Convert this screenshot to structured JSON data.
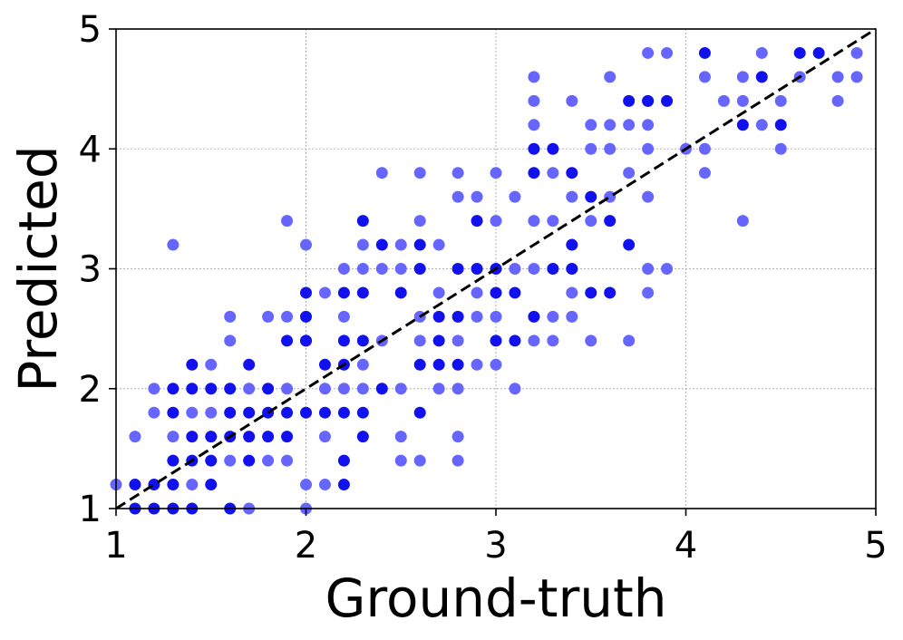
{
  "chart_data": {
    "type": "scatter",
    "title": "",
    "xlabel": "Ground-truth",
    "ylabel": "Predicted",
    "xlim": [
      1,
      5
    ],
    "ylim": [
      1,
      5
    ],
    "xticks": [
      "1",
      "2",
      "3",
      "4",
      "5"
    ],
    "yticks": [
      "1",
      "2",
      "3",
      "4",
      "5"
    ],
    "grid": true,
    "reference_line": {
      "style": "dashed",
      "color": "#000000",
      "from": [
        1,
        1
      ],
      "to": [
        5,
        5
      ]
    },
    "colors": {
      "light": "#6666ff",
      "dark": "#1111ee"
    },
    "series": [
      {
        "color_key": "light",
        "points": [
          [
            1.0,
            1.2
          ],
          [
            1.1,
            1.6
          ],
          [
            1.2,
            1.8
          ],
          [
            1.2,
            2.0
          ],
          [
            1.3,
            1.6
          ],
          [
            1.3,
            3.2
          ],
          [
            1.4,
            1.2
          ],
          [
            1.4,
            1.8
          ],
          [
            1.5,
            2.2
          ],
          [
            1.5,
            1.8
          ],
          [
            1.6,
            2.4
          ],
          [
            1.6,
            2.6
          ],
          [
            1.6,
            1.4
          ],
          [
            1.7,
            1.0
          ],
          [
            1.7,
            2.0
          ],
          [
            1.8,
            2.6
          ],
          [
            1.8,
            1.4
          ],
          [
            1.9,
            3.4
          ],
          [
            1.9,
            2.6
          ],
          [
            1.9,
            2.0
          ],
          [
            1.9,
            1.4
          ],
          [
            2.0,
            3.2
          ],
          [
            2.0,
            2.4
          ],
          [
            2.0,
            1.2
          ],
          [
            2.0,
            1.0
          ],
          [
            2.1,
            2.0
          ],
          [
            2.1,
            1.6
          ],
          [
            2.1,
            1.2
          ],
          [
            2.1,
            2.8
          ],
          [
            2.2,
            2.0
          ],
          [
            2.2,
            2.6
          ],
          [
            2.2,
            3.0
          ],
          [
            2.3,
            3.2
          ],
          [
            2.3,
            2.2
          ],
          [
            2.3,
            3.0
          ],
          [
            2.3,
            2.0
          ],
          [
            2.4,
            3.8
          ],
          [
            2.4,
            3.0
          ],
          [
            2.4,
            2.4
          ],
          [
            2.5,
            3.0
          ],
          [
            2.5,
            3.2
          ],
          [
            2.5,
            2.0
          ],
          [
            2.5,
            1.6
          ],
          [
            2.5,
            1.4
          ],
          [
            2.6,
            3.8
          ],
          [
            2.6,
            3.4
          ],
          [
            2.6,
            2.6
          ],
          [
            2.6,
            2.4
          ],
          [
            2.6,
            1.4
          ],
          [
            2.7,
            3.2
          ],
          [
            2.7,
            2.8
          ],
          [
            2.7,
            2.0
          ],
          [
            2.8,
            3.8
          ],
          [
            2.8,
            3.6
          ],
          [
            2.8,
            2.4
          ],
          [
            2.8,
            2.0
          ],
          [
            2.8,
            1.6
          ],
          [
            2.8,
            1.4
          ],
          [
            2.9,
            3.6
          ],
          [
            2.9,
            2.8
          ],
          [
            2.9,
            2.6
          ],
          [
            2.9,
            2.2
          ],
          [
            3.0,
            3.8
          ],
          [
            3.0,
            3.4
          ],
          [
            3.0,
            2.6
          ],
          [
            3.0,
            2.2
          ],
          [
            3.1,
            3.6
          ],
          [
            3.1,
            3.0
          ],
          [
            3.1,
            2.0
          ],
          [
            3.2,
            4.6
          ],
          [
            3.2,
            4.4
          ],
          [
            3.2,
            4.2
          ],
          [
            3.2,
            3.4
          ],
          [
            3.2,
            3.0
          ],
          [
            3.2,
            2.4
          ],
          [
            3.3,
            3.8
          ],
          [
            3.3,
            3.4
          ],
          [
            3.3,
            2.6
          ],
          [
            3.3,
            2.4
          ],
          [
            3.4,
            4.4
          ],
          [
            3.4,
            3.6
          ],
          [
            3.4,
            2.8
          ],
          [
            3.4,
            2.6
          ],
          [
            3.5,
            4.2
          ],
          [
            3.5,
            3.4
          ],
          [
            3.5,
            2.4
          ],
          [
            3.5,
            4.0
          ],
          [
            3.6,
            4.6
          ],
          [
            3.6,
            4.2
          ],
          [
            3.6,
            3.6
          ],
          [
            3.6,
            4.0
          ],
          [
            3.7,
            4.2
          ],
          [
            3.7,
            3.8
          ],
          [
            3.7,
            2.4
          ],
          [
            3.8,
            4.8
          ],
          [
            3.8,
            4.4
          ],
          [
            3.8,
            4.2
          ],
          [
            3.8,
            3.6
          ],
          [
            3.8,
            3.0
          ],
          [
            3.8,
            2.8
          ],
          [
            3.8,
            4.0
          ],
          [
            3.9,
            4.8
          ],
          [
            3.9,
            3.0
          ],
          [
            4.0,
            4.0
          ],
          [
            4.1,
            4.0
          ],
          [
            4.1,
            3.8
          ],
          [
            4.1,
            4.6
          ],
          [
            4.2,
            4.4
          ],
          [
            4.3,
            4.6
          ],
          [
            4.3,
            4.4
          ],
          [
            4.3,
            3.4
          ],
          [
            4.4,
            4.8
          ],
          [
            4.4,
            4.2
          ],
          [
            4.5,
            4.4
          ],
          [
            4.5,
            4.0
          ],
          [
            4.6,
            4.6
          ],
          [
            4.8,
            4.6
          ],
          [
            4.8,
            4.4
          ],
          [
            4.9,
            4.6
          ],
          [
            4.9,
            4.8
          ]
        ]
      },
      {
        "color_key": "dark",
        "points": [
          [
            1.1,
            1.0
          ],
          [
            1.1,
            1.2
          ],
          [
            1.2,
            1.0
          ],
          [
            1.2,
            1.2
          ],
          [
            1.3,
            1.0
          ],
          [
            1.3,
            1.2
          ],
          [
            1.3,
            1.4
          ],
          [
            1.3,
            1.8
          ],
          [
            1.3,
            2.0
          ],
          [
            1.4,
            1.0
          ],
          [
            1.4,
            1.4
          ],
          [
            1.4,
            1.6
          ],
          [
            1.4,
            2.2
          ],
          [
            1.4,
            2.0
          ],
          [
            1.5,
            1.4
          ],
          [
            1.5,
            1.6
          ],
          [
            1.5,
            2.0
          ],
          [
            1.5,
            1.2
          ],
          [
            1.6,
            1.0
          ],
          [
            1.6,
            1.6
          ],
          [
            1.6,
            1.8
          ],
          [
            1.6,
            2.0
          ],
          [
            1.7,
            1.4
          ],
          [
            1.7,
            1.6
          ],
          [
            1.7,
            1.8
          ],
          [
            1.7,
            2.2
          ],
          [
            1.8,
            1.6
          ],
          [
            1.8,
            1.8
          ],
          [
            1.8,
            2.0
          ],
          [
            1.9,
            1.6
          ],
          [
            1.9,
            1.8
          ],
          [
            1.9,
            2.4
          ],
          [
            2.0,
            2.4
          ],
          [
            2.0,
            2.6
          ],
          [
            2.0,
            2.8
          ],
          [
            2.0,
            1.8
          ],
          [
            2.1,
            2.2
          ],
          [
            2.1,
            1.8
          ],
          [
            2.2,
            2.2
          ],
          [
            2.2,
            2.4
          ],
          [
            2.2,
            2.8
          ],
          [
            2.2,
            1.4
          ],
          [
            2.2,
            1.2
          ],
          [
            2.2,
            1.8
          ],
          [
            2.3,
            1.6
          ],
          [
            2.3,
            1.8
          ],
          [
            2.3,
            2.4
          ],
          [
            2.3,
            2.8
          ],
          [
            2.3,
            3.4
          ],
          [
            2.4,
            3.2
          ],
          [
            2.4,
            2.0
          ],
          [
            2.5,
            2.8
          ],
          [
            2.6,
            3.2
          ],
          [
            2.6,
            3.0
          ],
          [
            2.6,
            2.2
          ],
          [
            2.6,
            1.8
          ],
          [
            2.7,
            2.4
          ],
          [
            2.7,
            2.6
          ],
          [
            2.7,
            2.2
          ],
          [
            2.8,
            3.0
          ],
          [
            2.8,
            2.6
          ],
          [
            2.8,
            2.2
          ],
          [
            2.9,
            3.0
          ],
          [
            2.9,
            3.4
          ],
          [
            3.0,
            2.8
          ],
          [
            3.0,
            3.0
          ],
          [
            3.0,
            2.4
          ],
          [
            3.1,
            2.8
          ],
          [
            3.1,
            2.4
          ],
          [
            3.2,
            3.8
          ],
          [
            3.2,
            4.0
          ],
          [
            3.2,
            2.6
          ],
          [
            3.3,
            4.0
          ],
          [
            3.3,
            3.0
          ],
          [
            3.4,
            3.8
          ],
          [
            3.4,
            3.2
          ],
          [
            3.4,
            3.0
          ],
          [
            3.5,
            3.6
          ],
          [
            3.5,
            2.8
          ],
          [
            3.6,
            3.4
          ],
          [
            3.6,
            2.8
          ],
          [
            3.7,
            3.2
          ],
          [
            3.7,
            4.4
          ],
          [
            3.8,
            4.4
          ],
          [
            3.9,
            4.4
          ],
          [
            4.1,
            4.8
          ],
          [
            4.3,
            4.2
          ],
          [
            4.4,
            4.6
          ],
          [
            4.5,
            4.2
          ],
          [
            4.6,
            4.8
          ],
          [
            4.7,
            4.8
          ]
        ]
      }
    ]
  }
}
